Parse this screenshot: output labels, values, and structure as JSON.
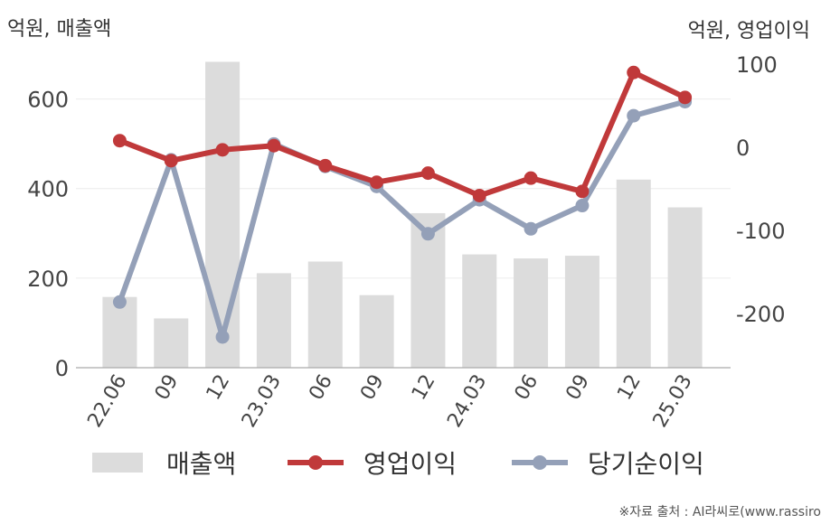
{
  "chart_data": {
    "type": "bar+line",
    "left_unit_label": "억원, 매출액",
    "right_unit_label": "억원, 영업이익",
    "categories": [
      "22.06",
      "09",
      "12",
      "23.03",
      "06",
      "09",
      "12",
      "24.03",
      "06",
      "09",
      "12",
      "25.03"
    ],
    "left_axis": {
      "ylim": [
        0,
        700
      ],
      "ticks": [
        0,
        200,
        400,
        600
      ]
    },
    "right_axis": {
      "ylim": [
        -265,
        112
      ],
      "ticks": [
        -200,
        -100,
        0,
        100
      ]
    },
    "series": [
      {
        "name": "매출액",
        "kind": "bar",
        "axis": "left",
        "color": "#dcdcdc",
        "values": [
          158,
          110,
          683,
          211,
          237,
          162,
          345,
          253,
          244,
          250,
          420,
          358
        ]
      },
      {
        "name": "영업이익",
        "kind": "line",
        "axis": "right",
        "color": "#c0393a",
        "values": [
          8,
          -16,
          -3,
          2,
          -22,
          -42,
          -31,
          -58,
          -37,
          -53,
          90,
          60
        ]
      },
      {
        "name": "당기순이익",
        "kind": "line",
        "axis": "right",
        "color": "#94a0b8",
        "values": [
          -186,
          -15,
          -228,
          4,
          -23,
          -47,
          -104,
          -63,
          -98,
          -70,
          38,
          55
        ]
      }
    ],
    "grid": true,
    "legend_position": "bottom"
  },
  "source_text": "※자료 출처 : AI라씨로(www.rassiro"
}
